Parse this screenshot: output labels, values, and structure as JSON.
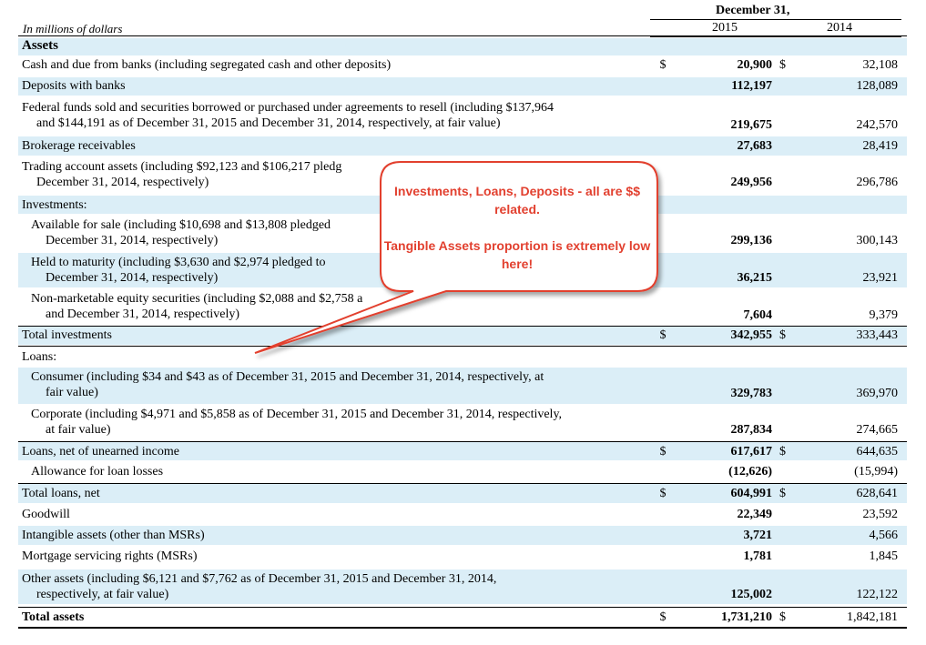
{
  "header": {
    "unit_note": "In millions of dollars",
    "period": "December 31,",
    "year_current": "2015",
    "year_prior": "2014"
  },
  "rows": [
    {
      "label": "Assets",
      "cont": "",
      "cur1": "",
      "v1": "",
      "cur2": "",
      "v2": ""
    },
    {
      "label": "Cash and due from banks (including segregated cash and other deposits)",
      "cont": "",
      "cur1": "$",
      "v1": "20,900",
      "cur2": "$",
      "v2": "32,108"
    },
    {
      "label": "Deposits with banks",
      "cont": "",
      "cur1": "",
      "v1": "112,197",
      "cur2": "",
      "v2": "128,089"
    },
    {
      "label": "Federal funds sold and securities borrowed or purchased under agreements to resell (including $137,964",
      "cont": "and $144,191 as of December 31, 2015 and December 31, 2014, respectively, at fair value)",
      "cur1": "",
      "v1": "219,675",
      "cur2": "",
      "v2": "242,570"
    },
    {
      "label": "Brokerage receivables",
      "cont": "",
      "cur1": "",
      "v1": "27,683",
      "cur2": "",
      "v2": "28,419"
    },
    {
      "label": "Trading account assets (including $92,123 and $106,217 pledg",
      "cont": "December 31, 2014, respectively)",
      "cur1": "",
      "v1": "249,956",
      "cur2": "",
      "v2": "296,786"
    },
    {
      "label": "Investments:",
      "cont": "",
      "cur1": "",
      "v1": "",
      "cur2": "",
      "v2": ""
    },
    {
      "label": "Available for sale (including $10,698 and $13,808 pledged",
      "cont": "December 31, 2014, respectively)",
      "cur1": "",
      "v1": "299,136",
      "cur2": "",
      "v2": "300,143"
    },
    {
      "label": "Held to maturity (including $3,630 and $2,974 pledged to",
      "cont": "December 31, 2014, respectively)",
      "cur1": "",
      "v1": "36,215",
      "cur2": "",
      "v2": "23,921"
    },
    {
      "label": "Non-marketable equity securities (including $2,088 and $2,758 a",
      "cont": "and December 31, 2014, respectively)",
      "cur1": "",
      "v1": "7,604",
      "cur2": "",
      "v2": "9,379"
    },
    {
      "label": "Total investments",
      "cont": "",
      "cur1": "$",
      "v1": "342,955",
      "cur2": "$",
      "v2": "333,443"
    },
    {
      "label": "Loans:",
      "cont": "",
      "cur1": "",
      "v1": "",
      "cur2": "",
      "v2": ""
    },
    {
      "label": "Consumer (including $34 and $43 as of December 31, 2015 and December 31, 2014, respectively, at",
      "cont": "fair value)",
      "cur1": "",
      "v1": "329,783",
      "cur2": "",
      "v2": "369,970"
    },
    {
      "label": "Corporate (including $4,971 and $5,858 as of December 31, 2015 and December 31, 2014, respectively,",
      "cont": "at fair value)",
      "cur1": "",
      "v1": "287,834",
      "cur2": "",
      "v2": "274,665"
    },
    {
      "label": "Loans, net of unearned income",
      "cont": "",
      "cur1": "$",
      "v1": "617,617",
      "cur2": "$",
      "v2": "644,635"
    },
    {
      "label": "Allowance for loan losses",
      "cont": "",
      "cur1": "",
      "v1": "(12,626)",
      "cur2": "",
      "v2": "(15,994)"
    },
    {
      "label": "Total loans, net",
      "cont": "",
      "cur1": "$",
      "v1": "604,991",
      "cur2": "$",
      "v2": "628,641"
    },
    {
      "label": "Goodwill",
      "cont": "",
      "cur1": "",
      "v1": "22,349",
      "cur2": "",
      "v2": "23,592"
    },
    {
      "label": "Intangible assets (other than MSRs)",
      "cont": "",
      "cur1": "",
      "v1": "3,721",
      "cur2": "",
      "v2": "4,566"
    },
    {
      "label": "Mortgage servicing rights (MSRs)",
      "cont": "",
      "cur1": "",
      "v1": "1,781",
      "cur2": "",
      "v2": "1,845"
    },
    {
      "label": "Other assets (including $6,121 and $7,762 as of December 31, 2015 and December 31, 2014,",
      "cont": "respectively, at fair value)",
      "cur1": "",
      "v1": "125,002",
      "cur2": "",
      "v2": "122,122"
    },
    {
      "label": "Total assets",
      "cont": "",
      "cur1": "$",
      "v1": "1,731,210",
      "cur2": "$",
      "v2": "1,842,181"
    }
  ],
  "callout": {
    "line1": "Investments, Loans, Deposits - all are $$ related.",
    "line2": "Tangible Assets proportion is extremely low here!",
    "fill_color": "#ffffff",
    "border_color": "#e2402f",
    "text_color": "#e2402f"
  }
}
